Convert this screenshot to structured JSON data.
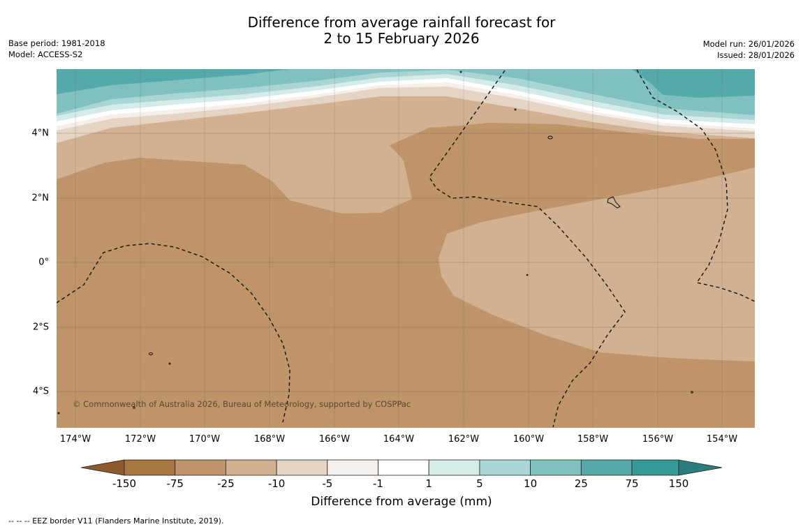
{
  "title": {
    "line1": "Difference from average rainfall forecast for",
    "line2": "2 to 15 February 2026"
  },
  "meta_left": {
    "base_period": "Base period: 1981-2018",
    "model": "Model: ACCESS-S2"
  },
  "meta_right": {
    "model_run": "Model run: 26/01/2026",
    "issued": "Issued: 28/01/2026"
  },
  "map": {
    "lon_labels": [
      "174°W",
      "172°W",
      "170°W",
      "168°W",
      "166°W",
      "164°W",
      "162°W",
      "160°W",
      "158°W",
      "156°W",
      "154°W"
    ],
    "lat_labels": [
      "4°N",
      "2°N",
      "0°",
      "2°S",
      "4°S"
    ],
    "copyright": "© Commonwealth of Australia 2026, Bureau of Meteorology, supported by COSPPac"
  },
  "colorbar": {
    "ticks": [
      "-150",
      "-75",
      "-25",
      "-10",
      "-5",
      "-1",
      "1",
      "5",
      "10",
      "25",
      "75",
      "150"
    ],
    "colors": [
      "#a87640",
      "#bf9469",
      "#d2b192",
      "#e5d4c4",
      "#f4efea",
      "#ffffff",
      "#d5ebe9",
      "#a9d5d5",
      "#80c0bf",
      "#56a9ab",
      "#349998"
    ],
    "under_color": "#8c5c2e",
    "over_color": "#2b7d7d",
    "label": "Difference from average (mm)"
  },
  "footnote": "--  --  -- EEZ border V11 (Flanders Marine Institute, 2019).",
  "colors": {
    "dark_brown": "#bf9469",
    "light_brown": "#d2b192",
    "pale_brown": "#e5d4c4",
    "teal_light": "#80c0bf",
    "teal": "#56a9ab",
    "teal_pale": "#a9d5d5"
  }
}
